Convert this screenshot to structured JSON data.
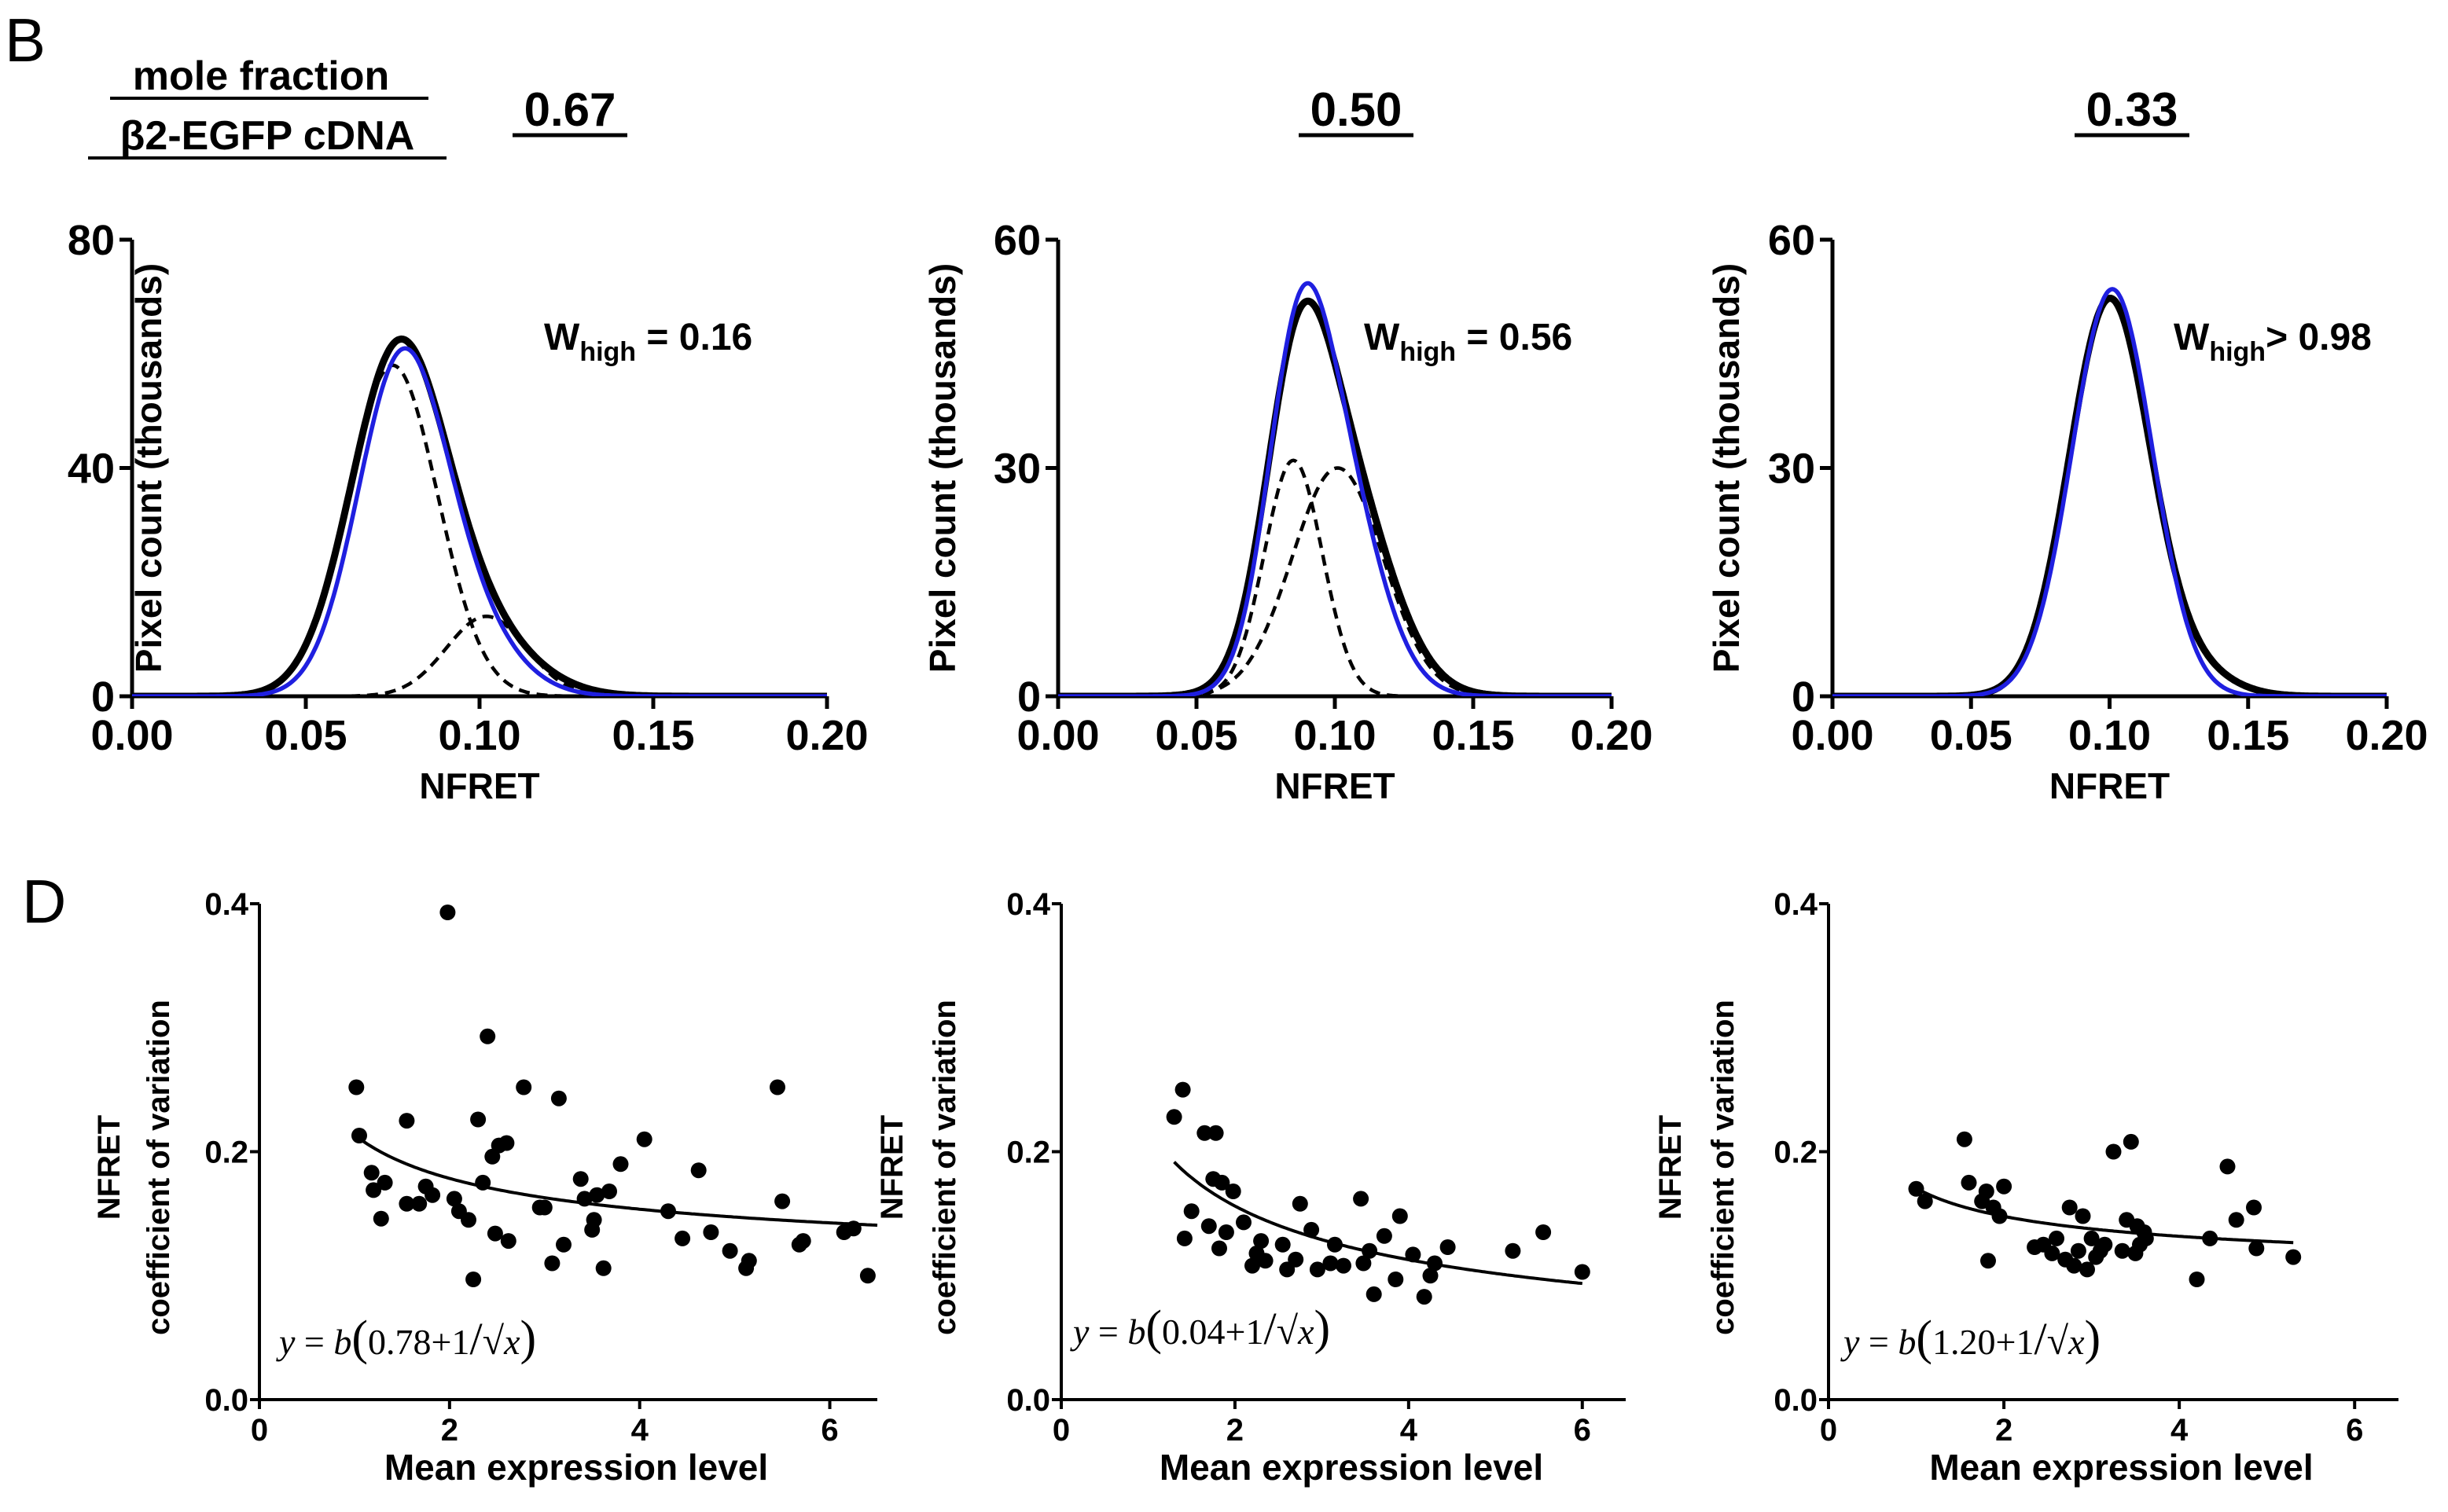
{
  "header": {
    "panel_b_letter": "B",
    "panel_d_letter": "D",
    "mole_fraction_line1": "mole fraction",
    "mole_fraction_line2": "β2-EGFP cDNA"
  },
  "colors": {
    "fit_line": "#1f1fe0",
    "data_line": "#000000",
    "points": "#000000"
  },
  "chart_data": [
    {
      "type": "line",
      "panel": "B",
      "column": 0,
      "concentration_label": "0.67",
      "annotation": {
        "symbol": "W",
        "sub": "high",
        "rest": " = 0.16"
      },
      "xlabel": "NFRET",
      "ylabel": "Pixel count (thousands)",
      "xlim": [
        0.0,
        0.2
      ],
      "ylim": [
        0,
        80
      ],
      "xticks": [
        "0.00",
        "0.05",
        "0.10",
        "0.15",
        "0.20"
      ],
      "yticks": [
        "0",
        "40",
        "80"
      ],
      "xtick_values": [
        0,
        0.05,
        0.1,
        0.15,
        0.2
      ],
      "ytick_values": [
        0,
        40,
        80
      ],
      "series": [
        {
          "name": "measured histogram",
          "style": "solid-black",
          "components": [
            {
              "peak": 56,
              "mu": 0.076,
              "sigma": 0.0135
            },
            {
              "peak": 13,
              "mu": 0.096,
              "sigma": 0.0165
            }
          ]
        },
        {
          "name": "low-FRET component",
          "style": "dashed",
          "components": [
            {
              "peak": 58,
              "mu": 0.075,
              "sigma": 0.013
            }
          ]
        },
        {
          "name": "high-FRET component",
          "style": "dashed",
          "components": [
            {
              "peak": 14,
              "mu": 0.102,
              "sigma": 0.0115
            }
          ]
        },
        {
          "name": "total fit",
          "style": "solid-blue",
          "components": [
            {
              "peak": 54,
              "mu": 0.077,
              "sigma": 0.0125
            },
            {
              "peak": 13,
              "mu": 0.094,
              "sigma": 0.0145
            }
          ]
        }
      ]
    },
    {
      "type": "line",
      "panel": "B",
      "column": 1,
      "concentration_label": "0.50",
      "annotation": {
        "symbol": "W",
        "sub": "high",
        "rest": " = 0.56"
      },
      "xlabel": "NFRET",
      "ylabel": "Pixel count (thousands)",
      "xlim": [
        0.0,
        0.2
      ],
      "ylim": [
        0,
        60
      ],
      "xticks": [
        "0.00",
        "0.05",
        "0.10",
        "0.15",
        "0.20"
      ],
      "yticks": [
        "0",
        "30",
        "60"
      ],
      "xtick_values": [
        0,
        0.05,
        0.1,
        0.15,
        0.2
      ],
      "ytick_values": [
        0,
        30,
        60
      ],
      "series": [
        {
          "name": "measured histogram",
          "style": "solid-black",
          "components": [
            {
              "peak": 29,
              "mu": 0.086,
              "sigma": 0.0115
            },
            {
              "peak": 30,
              "mu": 0.101,
              "sigma": 0.0175
            }
          ]
        },
        {
          "name": "low-FRET component",
          "style": "dashed",
          "components": [
            {
              "peak": 31,
              "mu": 0.085,
              "sigma": 0.0105
            }
          ]
        },
        {
          "name": "high-FRET component",
          "style": "dashed",
          "components": [
            {
              "peak": 30,
              "mu": 0.101,
              "sigma": 0.0165
            }
          ]
        },
        {
          "name": "total fit",
          "style": "solid-blue",
          "components": [
            {
              "peak": 30,
              "mu": 0.086,
              "sigma": 0.011
            },
            {
              "peak": 31,
              "mu": 0.099,
              "sigma": 0.0155
            }
          ]
        }
      ]
    },
    {
      "type": "line",
      "panel": "B",
      "column": 2,
      "concentration_label": "0.33",
      "annotation": {
        "symbol": "W",
        "sub": "high",
        "rest": "> 0.98"
      },
      "xlabel": "NFRET",
      "ylabel": "Pixel count (thousands)",
      "xlim": [
        0.0,
        0.2
      ],
      "ylim": [
        0,
        60
      ],
      "xticks": [
        "0.00",
        "0.05",
        "0.10",
        "0.15",
        "0.20"
      ],
      "yticks": [
        "0",
        "30",
        "60"
      ],
      "xtick_values": [
        0,
        0.05,
        0.1,
        0.15,
        0.2
      ],
      "ytick_values": [
        0,
        30,
        60
      ],
      "series": [
        {
          "name": "measured histogram",
          "style": "solid-black",
          "components": [
            {
              "peak": 52,
              "mu": 0.1,
              "sigma": 0.0145
            },
            {
              "peak": 3,
              "mu": 0.13,
              "sigma": 0.014
            }
          ]
        },
        {
          "name": "total fit",
          "style": "solid-blue",
          "components": [
            {
              "peak": 53.5,
              "mu": 0.101,
              "sigma": 0.0145
            }
          ]
        }
      ]
    },
    {
      "type": "scatter",
      "panel": "D",
      "column": 0,
      "xlabel": "Mean expression level",
      "ylabel_line1": "NFRET",
      "ylabel_line2": "coefficient of variation",
      "xlim": [
        0,
        6.5
      ],
      "ylim": [
        0,
        0.4
      ],
      "xticks": [
        "0",
        "2",
        "4",
        "6"
      ],
      "yticks": [
        "0.0",
        "0.2",
        "0.4"
      ],
      "xtick_values": [
        0,
        2,
        4,
        6
      ],
      "ytick_values": [
        0,
        0.2,
        0.4
      ],
      "equation": {
        "lhs": "y",
        "b": "b",
        "a": "0.78",
        "plus_one": "+1",
        "slash": "/",
        "sqrt_var": "x"
      },
      "fit": {
        "a": 0.78,
        "b": 0.12,
        "x_from": 1.0,
        "x_to": 6.5
      },
      "points": [
        [
          1.02,
          0.252
        ],
        [
          1.05,
          0.213
        ],
        [
          1.18,
          0.183
        ],
        [
          1.2,
          0.169
        ],
        [
          1.28,
          0.146
        ],
        [
          1.32,
          0.175
        ],
        [
          1.55,
          0.225
        ],
        [
          1.55,
          0.158
        ],
        [
          1.68,
          0.158
        ],
        [
          1.75,
          0.172
        ],
        [
          1.82,
          0.165
        ],
        [
          1.98,
          0.393
        ],
        [
          2.05,
          0.162
        ],
        [
          2.1,
          0.152
        ],
        [
          2.2,
          0.145
        ],
        [
          2.25,
          0.097
        ],
        [
          2.3,
          0.226
        ],
        [
          2.35,
          0.175
        ],
        [
          2.4,
          0.293
        ],
        [
          2.45,
          0.196
        ],
        [
          2.48,
          0.134
        ],
        [
          2.52,
          0.205
        ],
        [
          2.6,
          0.207
        ],
        [
          2.62,
          0.128
        ],
        [
          2.78,
          0.252
        ],
        [
          2.95,
          0.155
        ],
        [
          3.0,
          0.155
        ],
        [
          3.08,
          0.11
        ],
        [
          3.15,
          0.243
        ],
        [
          3.2,
          0.125
        ],
        [
          3.38,
          0.178
        ],
        [
          3.42,
          0.162
        ],
        [
          3.5,
          0.137
        ],
        [
          3.52,
          0.145
        ],
        [
          3.55,
          0.165
        ],
        [
          3.62,
          0.106
        ],
        [
          3.68,
          0.168
        ],
        [
          3.8,
          0.19
        ],
        [
          4.05,
          0.21
        ],
        [
          4.3,
          0.152
        ],
        [
          4.45,
          0.13
        ],
        [
          4.62,
          0.185
        ],
        [
          4.75,
          0.135
        ],
        [
          4.95,
          0.12
        ],
        [
          5.12,
          0.106
        ],
        [
          5.15,
          0.112
        ],
        [
          5.45,
          0.252
        ],
        [
          5.5,
          0.16
        ],
        [
          5.68,
          0.125
        ],
        [
          5.72,
          0.128
        ],
        [
          6.15,
          0.135
        ],
        [
          6.25,
          0.138
        ],
        [
          6.4,
          0.1
        ]
      ]
    },
    {
      "type": "scatter",
      "panel": "D",
      "column": 1,
      "xlabel": "Mean expression level",
      "ylabel_line1": "NFRET",
      "ylabel_line2": "coefficient of variation",
      "xlim": [
        0,
        6.5
      ],
      "ylim": [
        0,
        0.4
      ],
      "xticks": [
        "0",
        "2",
        "4",
        "6"
      ],
      "yticks": [
        "0.0",
        "0.2",
        "0.4"
      ],
      "xtick_values": [
        0,
        2,
        4,
        6
      ],
      "ytick_values": [
        0,
        0.2,
        0.4
      ],
      "equation": {
        "lhs": "y",
        "b": "b",
        "a": "0.04",
        "plus_one": "+1",
        "slash": "/",
        "sqrt_var": "x"
      },
      "fit": {
        "a": 0.04,
        "b": 0.209,
        "x_from": 1.3,
        "x_to": 6.0
      },
      "points": [
        [
          1.3,
          0.228
        ],
        [
          1.4,
          0.25
        ],
        [
          1.42,
          0.13
        ],
        [
          1.5,
          0.152
        ],
        [
          1.65,
          0.215
        ],
        [
          1.7,
          0.14
        ],
        [
          1.75,
          0.178
        ],
        [
          1.78,
          0.215
        ],
        [
          1.82,
          0.122
        ],
        [
          1.85,
          0.175
        ],
        [
          1.9,
          0.135
        ],
        [
          1.98,
          0.168
        ],
        [
          2.1,
          0.143
        ],
        [
          2.2,
          0.108
        ],
        [
          2.25,
          0.118
        ],
        [
          2.3,
          0.128
        ],
        [
          2.35,
          0.112
        ],
        [
          2.55,
          0.125
        ],
        [
          2.6,
          0.105
        ],
        [
          2.7,
          0.113
        ],
        [
          2.75,
          0.158
        ],
        [
          2.88,
          0.137
        ],
        [
          2.95,
          0.105
        ],
        [
          3.1,
          0.11
        ],
        [
          3.15,
          0.125
        ],
        [
          3.25,
          0.108
        ],
        [
          3.45,
          0.162
        ],
        [
          3.48,
          0.11
        ],
        [
          3.55,
          0.12
        ],
        [
          3.6,
          0.085
        ],
        [
          3.72,
          0.132
        ],
        [
          3.85,
          0.097
        ],
        [
          3.9,
          0.148
        ],
        [
          4.05,
          0.117
        ],
        [
          4.18,
          0.083
        ],
        [
          4.25,
          0.1
        ],
        [
          4.3,
          0.11
        ],
        [
          4.45,
          0.123
        ],
        [
          5.2,
          0.12
        ],
        [
          5.55,
          0.135
        ],
        [
          6.0,
          0.103
        ]
      ]
    },
    {
      "type": "scatter",
      "panel": "D",
      "column": 2,
      "xlabel": "Mean expression level",
      "ylabel_line1": "NFRET",
      "ylabel_line2": "coefficient of variation",
      "xlim": [
        0,
        6.5
      ],
      "ylim": [
        0,
        0.4
      ],
      "xticks": [
        "0",
        "2",
        "4",
        "6"
      ],
      "yticks": [
        "0.0",
        "0.2",
        "0.4"
      ],
      "xtick_values": [
        0,
        2,
        4,
        6
      ],
      "ytick_values": [
        0,
        0.2,
        0.4
      ],
      "equation": {
        "lhs": "y",
        "b": "b",
        "a": "1.20",
        "plus_one": "+1",
        "slash": "/",
        "sqrt_var": "x"
      },
      "fit": {
        "a": 1.2,
        "b": 0.0775,
        "x_from": 1.0,
        "x_to": 5.3
      },
      "points": [
        [
          1.0,
          0.17
        ],
        [
          1.1,
          0.16
        ],
        [
          1.55,
          0.21
        ],
        [
          1.6,
          0.175
        ],
        [
          1.75,
          0.16
        ],
        [
          1.8,
          0.168
        ],
        [
          1.82,
          0.112
        ],
        [
          1.88,
          0.155
        ],
        [
          1.95,
          0.148
        ],
        [
          2.0,
          0.172
        ],
        [
          2.35,
          0.123
        ],
        [
          2.45,
          0.125
        ],
        [
          2.55,
          0.118
        ],
        [
          2.6,
          0.13
        ],
        [
          2.7,
          0.113
        ],
        [
          2.75,
          0.155
        ],
        [
          2.8,
          0.108
        ],
        [
          2.85,
          0.12
        ],
        [
          2.9,
          0.148
        ],
        [
          2.95,
          0.105
        ],
        [
          3.0,
          0.13
        ],
        [
          3.05,
          0.115
        ],
        [
          3.1,
          0.12
        ],
        [
          3.15,
          0.125
        ],
        [
          3.25,
          0.2
        ],
        [
          3.35,
          0.12
        ],
        [
          3.4,
          0.145
        ],
        [
          3.45,
          0.208
        ],
        [
          3.5,
          0.118
        ],
        [
          3.52,
          0.14
        ],
        [
          3.55,
          0.125
        ],
        [
          3.6,
          0.135
        ],
        [
          3.62,
          0.13
        ],
        [
          4.2,
          0.097
        ],
        [
          4.35,
          0.13
        ],
        [
          4.55,
          0.188
        ],
        [
          4.65,
          0.145
        ],
        [
          4.85,
          0.155
        ],
        [
          4.88,
          0.122
        ],
        [
          5.3,
          0.115
        ]
      ]
    }
  ]
}
